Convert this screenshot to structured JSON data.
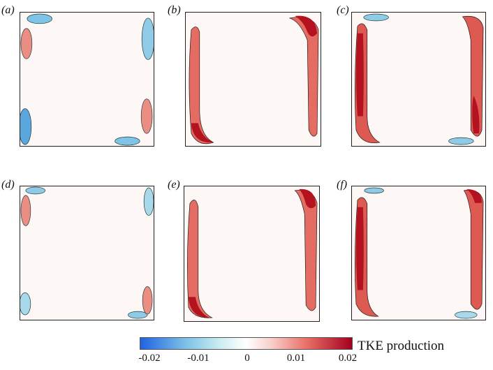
{
  "chart_data": [
    {
      "type": "heatmap",
      "panel": "(a)",
      "hotspots": [
        "top-left-blue",
        "top-right-blue",
        "bottom-left-blue",
        "bottom-right-blue",
        "left-red",
        "right-red"
      ]
    },
    {
      "type": "heatmap",
      "panel": "(b)",
      "hotspots": [
        "left-red-band",
        "right-red-band",
        "top-right-red",
        "bottom-left-red"
      ]
    },
    {
      "type": "heatmap",
      "panel": "(c)",
      "hotspots": [
        "left-red-band",
        "right-red-band",
        "top-blue",
        "bottom-blue"
      ]
    },
    {
      "type": "heatmap",
      "panel": "(d)",
      "hotspots": [
        "top-left-blue",
        "right-blue",
        "bottom-left-blue",
        "bottom-right-blue",
        "left-red",
        "right-red"
      ]
    },
    {
      "type": "heatmap",
      "panel": "(e)",
      "hotspots": [
        "left-red-band",
        "right-red-band",
        "top-right-red",
        "bottom-left-red"
      ]
    },
    {
      "type": "heatmap",
      "panel": "(f)",
      "hotspots": [
        "left-red-band",
        "right-red-band",
        "top-blue",
        "bottom-blue"
      ]
    }
  ],
  "panel_labels": [
    "(a)",
    "(b)",
    "(c)",
    "(d)",
    "(e)",
    "(f)"
  ],
  "colorbar": {
    "title": "TKE production",
    "range": [
      -0.02,
      0.02
    ],
    "ticks": [
      "-0.02",
      "-0.01",
      "0",
      "0.01",
      "0.02"
    ],
    "colors": {
      "low": "#1f63e0",
      "mid": "#ffffff",
      "high": "#a4001e"
    }
  }
}
